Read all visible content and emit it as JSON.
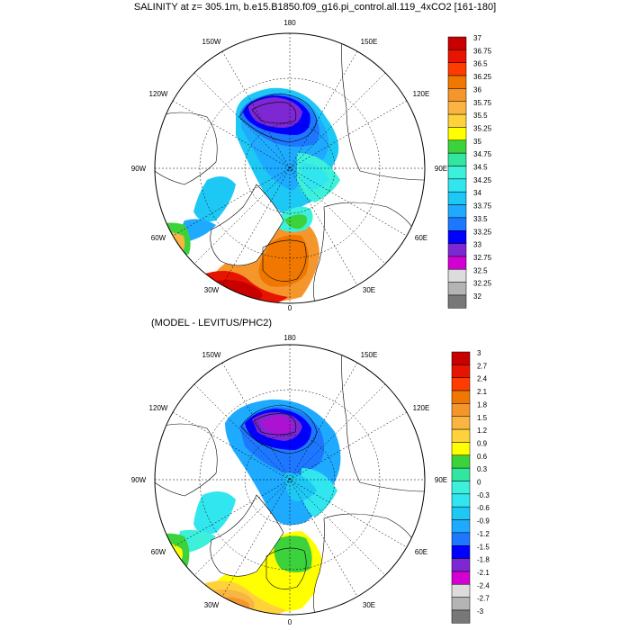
{
  "title": "SALINITY at z= 305.1m, b.e15.B1850.f09_g16.pi_control.all.119_4xCO2 [161-180]",
  "subtitle": "(MODEL - LEVITUS/PHC2)",
  "longitude_labels": {
    "top": "180",
    "nw": "150W",
    "ne": "150E",
    "w120": "120W",
    "e120": "120E",
    "w90": "90W",
    "e90": "90E",
    "w60": "60W",
    "e60": "60E",
    "w30": "30W",
    "e30": "30E",
    "bottom": "0"
  },
  "colorbar_top": {
    "labels": [
      "37",
      "36.75",
      "36.5",
      "36.25",
      "36",
      "35.75",
      "35.5",
      "35.25",
      "35",
      "34.75",
      "34.5",
      "34.25",
      "34",
      "33.75",
      "33.5",
      "33.25",
      "33",
      "32.75",
      "32.5",
      "32.25",
      "32"
    ],
    "colors": [
      "#c80000",
      "#e61400",
      "#ff3c00",
      "#f07800",
      "#f5962d",
      "#fab441",
      "#ffd23c",
      "#ffff00",
      "#3cd23c",
      "#32e6a0",
      "#3cf0dc",
      "#32e6f0",
      "#1ec8f5",
      "#1eaaff",
      "#1e78ff",
      "#0000ff",
      "#7d28d2",
      "#d200d2",
      "#dcdcdc",
      "#b4b4b4",
      "#787878"
    ]
  },
  "colorbar_bottom": {
    "labels": [
      "3",
      "2.7",
      "2.4",
      "2.1",
      "1.8",
      "1.5",
      "1.2",
      "0.9",
      "0.6",
      "0.3",
      "0",
      "-0.3",
      "-0.6",
      "-0.9",
      "-1.2",
      "-1.5",
      "-1.8",
      "-2.1",
      "-2.4",
      "-2.7",
      "-3"
    ],
    "colors": [
      "#c80000",
      "#e61400",
      "#ff3c00",
      "#f07800",
      "#f5962d",
      "#fab441",
      "#ffd23c",
      "#ffff00",
      "#3cd23c",
      "#32e6a0",
      "#3cf0dc",
      "#32e6f0",
      "#1ec8f5",
      "#1eaaff",
      "#1e78ff",
      "#0000ff",
      "#7d28d2",
      "#d200d2",
      "#dcdcdc",
      "#b4b4b4",
      "#787878"
    ]
  }
}
